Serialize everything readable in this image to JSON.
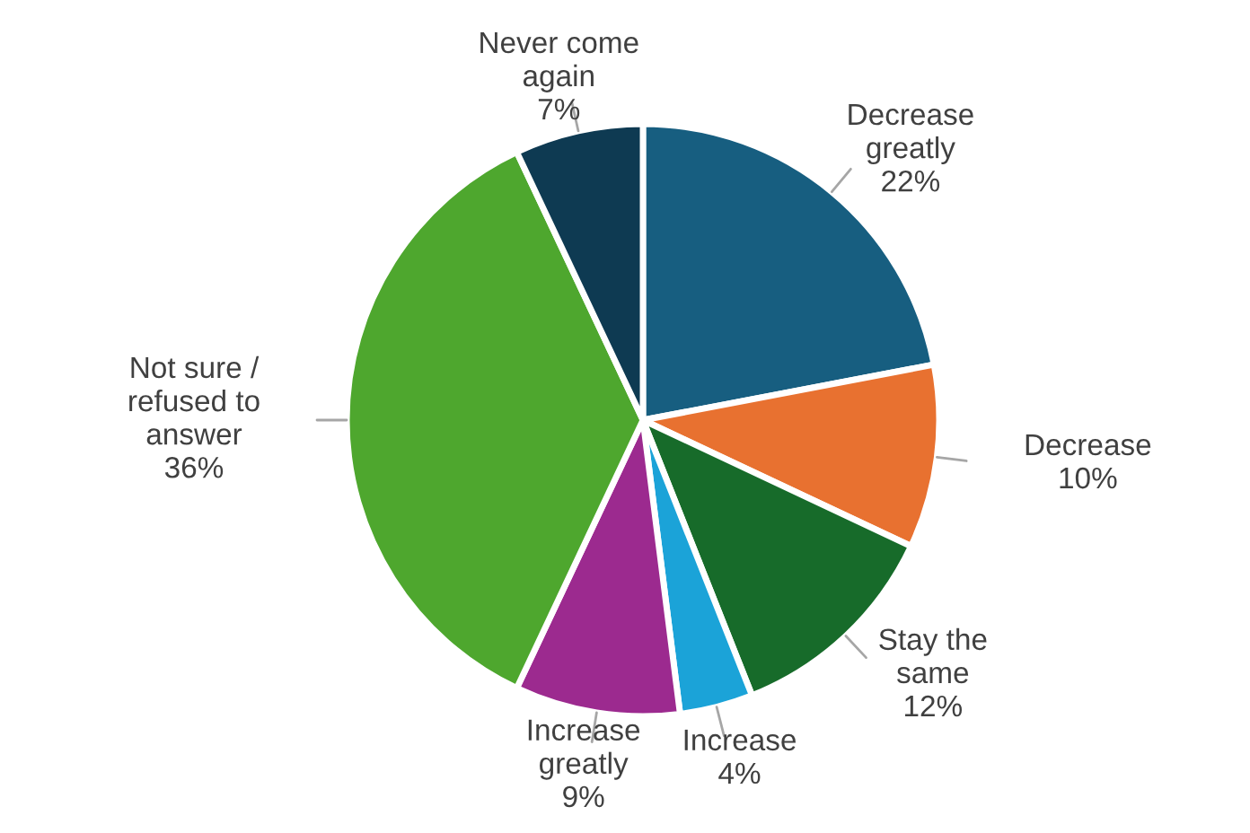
{
  "chart_data": {
    "type": "pie",
    "categories": [
      "Decrease\ngreatly",
      "Decrease",
      "Stay the\nsame",
      "Increase",
      "Increase\ngreatly",
      "Not sure /\nrefused to\nanswer",
      "Never come\nagain"
    ],
    "values": [
      22,
      10,
      12,
      4,
      9,
      36,
      7
    ],
    "value_labels": [
      "22%",
      "10%",
      "12%",
      "4%",
      "9%",
      "36%",
      "7%"
    ],
    "colors": [
      "#175e80",
      "#e87130",
      "#176b2a",
      "#1ba3d8",
      "#9c2a8f",
      "#4ea72e",
      "#0e3a52"
    ]
  }
}
